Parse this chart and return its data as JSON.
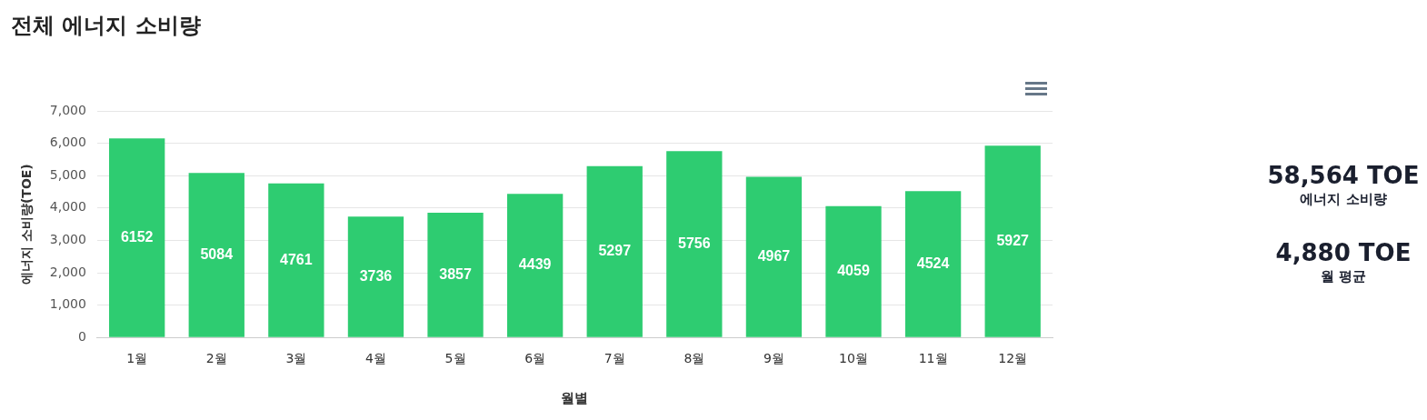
{
  "chart_data": [
    {
      "type": "bar",
      "title": "전체 에너지 소비량",
      "xlabel": "월별",
      "ylabel": "에너지 소비량(TOE)",
      "categories": [
        "1월",
        "2월",
        "3월",
        "4월",
        "5월",
        "6월",
        "7월",
        "8월",
        "9월",
        "10월",
        "11월",
        "12월"
      ],
      "values": [
        6152,
        5084,
        4761,
        3736,
        3857,
        4439,
        5297,
        5756,
        4967,
        4059,
        4524,
        5927
      ],
      "color": "#2ecc71",
      "ylim": [
        0,
        7000
      ],
      "yticks": [
        0,
        {
          "value": 1000,
          "label": "1,000"
        },
        {
          "value": 2000,
          "label": "2,000"
        },
        {
          "value": 3000,
          "label": "3,000"
        },
        {
          "value": 4000,
          "label": "4,000"
        },
        {
          "value": 5000,
          "label": "5,000"
        },
        {
          "value": 6000,
          "label": "6,000"
        },
        {
          "value": 7000,
          "label": "7,000"
        }
      ],
      "grid": "y",
      "legend": false,
      "data_labels": true
    },
    {
      "type": "other",
      "annotations": [
        "58,564 TOE",
        "에너지 소비량",
        "4,880 TOE",
        "월 평균"
      ]
    }
  ]
}
